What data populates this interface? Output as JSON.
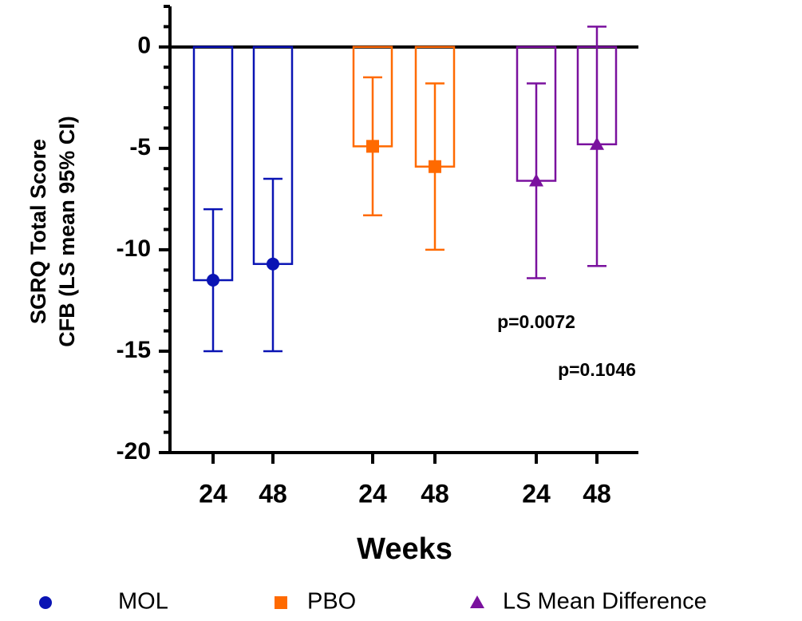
{
  "chart_data": {
    "type": "bar_errorbar",
    "ylabel": [
      "SGRQ Total Score",
      "CFB (LS mean 95% CI)"
    ],
    "xlabel": "Weeks",
    "categories": [
      "24",
      "48"
    ],
    "series": [
      {
        "name": "MOL",
        "color": "#0a14b4",
        "marker": "circle",
        "values": [
          -11.5,
          -10.7
        ],
        "lower": [
          -15,
          -15
        ],
        "upper": [
          -8,
          -6.5
        ]
      },
      {
        "name": "PBO",
        "color": "#ff6a00",
        "marker": "square",
        "values": [
          -4.9,
          -5.9
        ],
        "lower": [
          -8.3,
          -10
        ],
        "upper": [
          -1.5,
          -1.8
        ]
      },
      {
        "name": "LS Mean Difference",
        "color": "#7a119e",
        "marker": "triangle",
        "values": [
          -6.6,
          -4.8
        ],
        "lower": [
          -11.4,
          -10.8
        ],
        "upper": [
          -1.8,
          1.0
        ]
      }
    ],
    "ylim": [
      -20,
      2
    ],
    "yticks": [
      0,
      -5,
      -10,
      -15,
      -20
    ],
    "yminor_ticks": [
      2,
      1,
      -1,
      -2,
      -3,
      -4,
      -6,
      -7,
      -8,
      -9,
      -11,
      -12,
      -13,
      -14,
      -16,
      -17,
      -18,
      -19
    ],
    "annotations": [
      "p=0.0072",
      "p=0.1046"
    ]
  }
}
